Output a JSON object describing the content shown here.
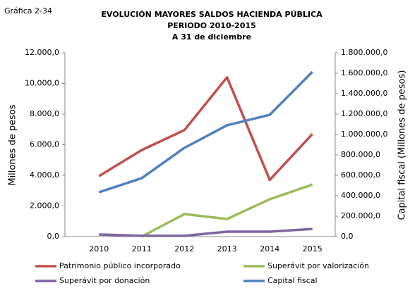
{
  "chart_data": {
    "type": "line",
    "label": "Gráfica 2-34",
    "title": [
      "EVOLUCIÓN MAYORES SALDOS HACIENDA PÚBLICA",
      "PERIODO 2010-2015",
      "A 31 de diciembre"
    ],
    "ylabel": "Millones de pesos",
    "y2label": "Capital fiscal (Millones de pesos)",
    "categories": [
      "2010",
      "2011",
      "2012",
      "2013",
      "2014",
      "2015"
    ],
    "ylim": [
      0,
      12000
    ],
    "yticks": [
      {
        "value": 0,
        "label": "0,0"
      },
      {
        "value": 2000,
        "label": "2.000,0"
      },
      {
        "value": 4000,
        "label": "4.000,0"
      },
      {
        "value": 6000,
        "label": "6.000,0"
      },
      {
        "value": 8000,
        "label": "8.000,0"
      },
      {
        "value": 10000,
        "label": "10.000,0"
      },
      {
        "value": 12000,
        "label": "12.000,0"
      }
    ],
    "y2lim": [
      0,
      1800000
    ],
    "y2ticks": [
      {
        "value": 0,
        "label": "0,0"
      },
      {
        "value": 200000,
        "label": "200.000,0"
      },
      {
        "value": 400000,
        "label": "400.000,0"
      },
      {
        "value": 600000,
        "label": "600.000,0"
      },
      {
        "value": 800000,
        "label": "800.000,0"
      },
      {
        "value": 1000000,
        "label": "1.000.000,0"
      },
      {
        "value": 1200000,
        "label": "1.200.000,0"
      },
      {
        "value": 1400000,
        "label": "1.400.000,0"
      },
      {
        "value": 1600000,
        "label": "1.600.000,0"
      },
      {
        "value": 1800000,
        "label": "1.800.000,0"
      }
    ],
    "series": [
      {
        "name": "Patrimonio público incorporado",
        "color": "#c0504d",
        "values": [
          3950,
          5650,
          6950,
          10400,
          3700,
          6700
        ]
      },
      {
        "name": "Superávit por valorización",
        "color": "#9bbb59",
        "values": [
          null,
          0,
          1470,
          1150,
          2440,
          3400
        ]
      },
      {
        "name": "Superávit por donación",
        "color": "#8064a2",
        "values": [
          140,
          50,
          50,
          320,
          320,
          500
        ]
      },
      {
        "name": "Capital fiscal",
        "color": "#4f81bd",
        "axis": "y2",
        "values": [
          434000,
          572000,
          869000,
          1090000,
          1193000,
          1614000
        ]
      }
    ]
  }
}
